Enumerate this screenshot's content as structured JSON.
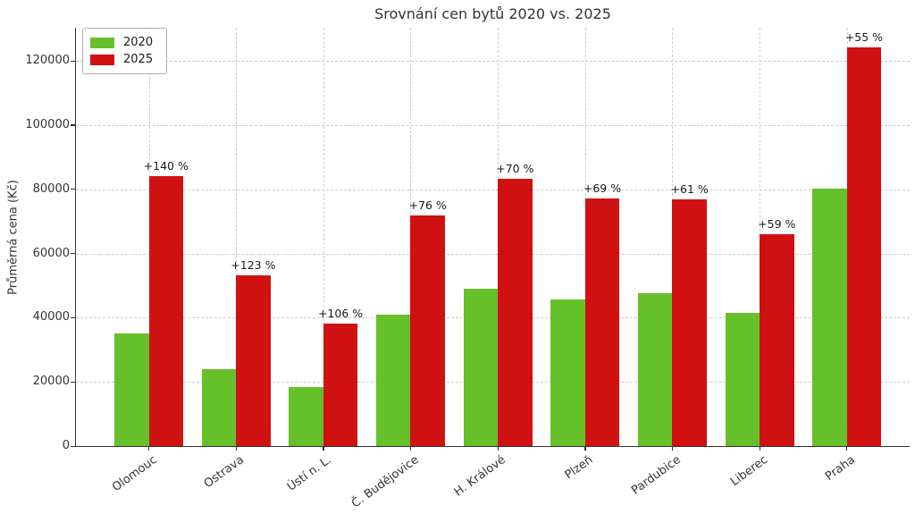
{
  "chart_data": {
    "type": "bar",
    "title": "Srovnání cen bytů 2020 vs. 2025",
    "xlabel": "",
    "ylabel": "Průměrná cena (Kč)",
    "categories": [
      "Olomouc",
      "Ostrava",
      "Ústí n. L.",
      "Č. Budějovice",
      "H. Králové",
      "Plzeň",
      "Pardubice",
      "Liberec",
      "Praha"
    ],
    "series": [
      {
        "name": "2020",
        "color": "#66c02a",
        "values": [
          35000,
          23900,
          18500,
          40800,
          49000,
          45600,
          47700,
          41500,
          80200
        ]
      },
      {
        "name": "2025",
        "color": "#d01111",
        "values": [
          84000,
          53300,
          38100,
          71800,
          83300,
          77000,
          76800,
          66000,
          124300
        ]
      }
    ],
    "annotations": [
      "+140 %",
      "+123 %",
      "+106 %",
      "+76 %",
      "+70 %",
      "+69 %",
      "+61 %",
      "+59 %",
      "+55 %"
    ],
    "yticks": [
      0,
      20000,
      40000,
      60000,
      80000,
      100000,
      120000
    ],
    "ylim": [
      0,
      130600
    ],
    "grid": true,
    "grid_style": "dashed",
    "legend_position": "upper left",
    "axis_color": "#333333",
    "grid_color": "#cdcdcd",
    "annotation_color": "#1a1a1a"
  }
}
